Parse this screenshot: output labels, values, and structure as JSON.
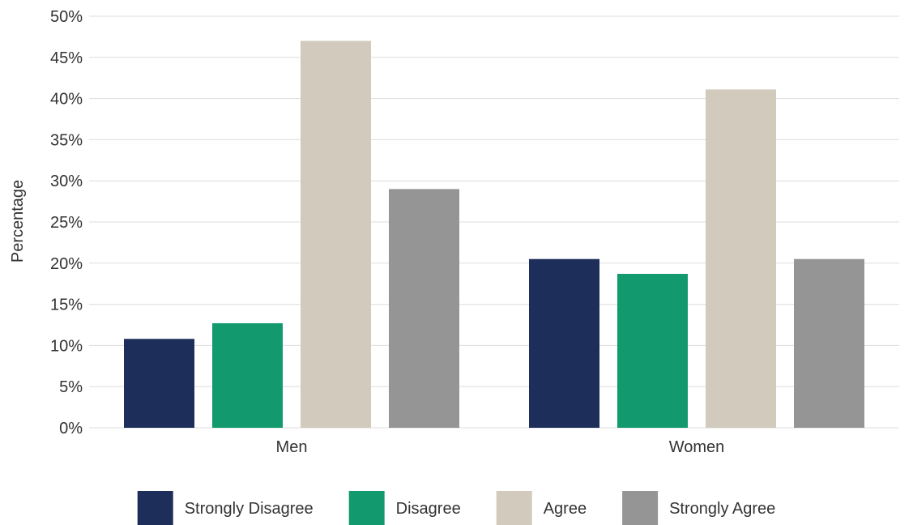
{
  "chart_data": {
    "type": "bar",
    "title": "",
    "xlabel": "",
    "ylabel": "Percentage",
    "ylim": [
      0,
      50
    ],
    "y_ticks": [
      0,
      5,
      10,
      15,
      20,
      25,
      30,
      35,
      40,
      45,
      50
    ],
    "y_tick_format": "percent",
    "grid": true,
    "legend_position": "bottom",
    "categories": [
      "Men",
      "Women"
    ],
    "series": [
      {
        "name": "Strongly Disagree",
        "color": "#1d2e5a",
        "values": [
          10.8,
          20.5
        ]
      },
      {
        "name": "Disagree",
        "color": "#129a6e",
        "values": [
          12.7,
          18.7
        ]
      },
      {
        "name": "Agree",
        "color": "#d2cbbd",
        "values": [
          47.0,
          41.1
        ]
      },
      {
        "name": "Strongly Agree",
        "color": "#959595",
        "values": [
          29.0,
          20.5
        ]
      }
    ]
  }
}
